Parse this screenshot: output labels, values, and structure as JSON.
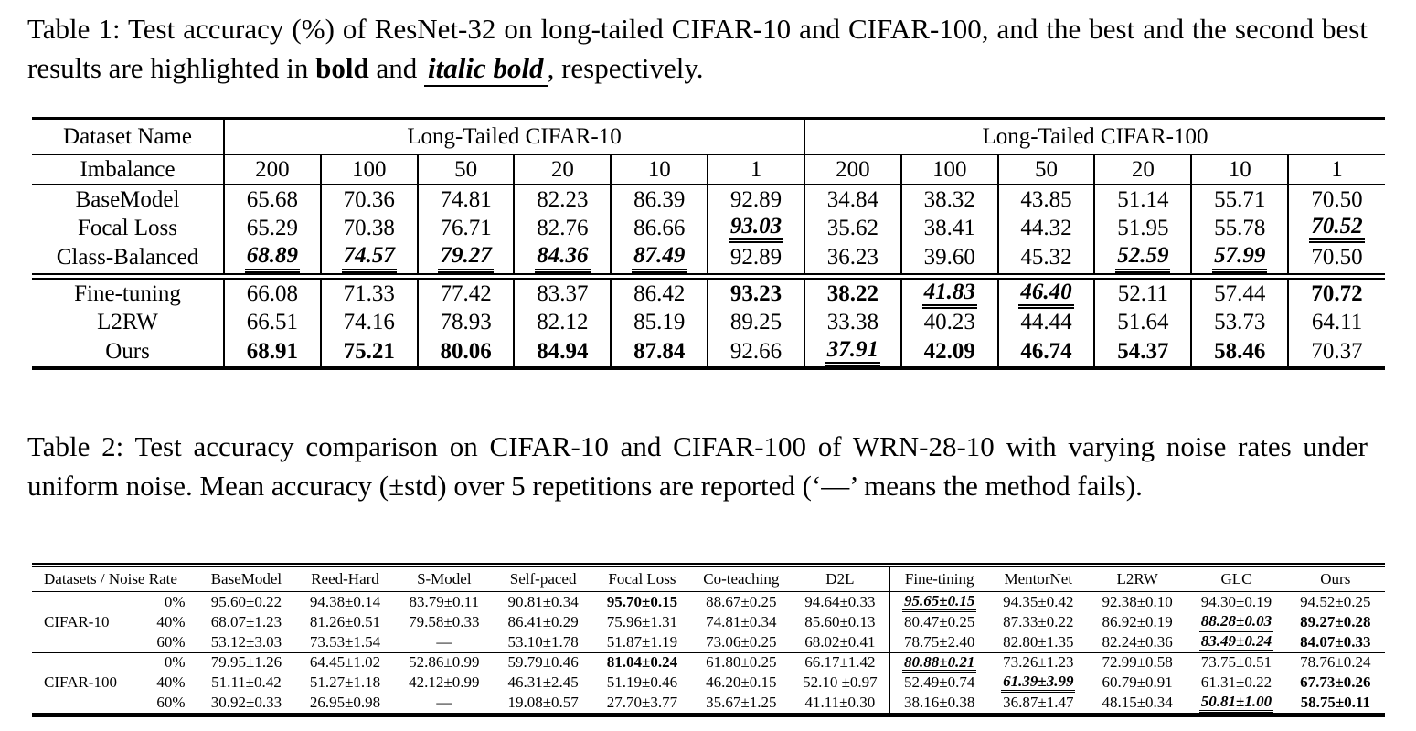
{
  "page": {
    "background": "#ffffff",
    "text_color": "#000000"
  },
  "style_legend": {
    "n": "normal",
    "b": "best (bold)",
    "u": "second best (italic bold, double underline)"
  },
  "table1": {
    "caption_segments": [
      {
        "text": "Table 1: Test accuracy (%) of ResNet-32 on long-tailed CIFAR-10 and CIFAR-100, and the best and the second best results are highlighted in ",
        "style": "normal"
      },
      {
        "text": "bold",
        "style": "bold"
      },
      {
        "text": " and ",
        "style": "normal"
      },
      {
        "text": "italic bold",
        "style": "bold-italic-underline"
      },
      {
        "text": ", respectively.",
        "style": "normal"
      }
    ],
    "header": {
      "dataset_name_label": "Dataset Name",
      "groups": [
        "Long-Tailed CIFAR-10",
        "Long-Tailed CIFAR-100"
      ],
      "imbalance_label": "Imbalance",
      "imbalance_values": [
        "200",
        "100",
        "50",
        "20",
        "10",
        "1",
        "200",
        "100",
        "50",
        "20",
        "10",
        "1"
      ]
    },
    "rows": [
      {
        "label": "BaseModel",
        "values": [
          "65.68",
          "70.36",
          "74.81",
          "82.23",
          "86.39",
          "92.89",
          "34.84",
          "38.32",
          "43.85",
          "51.14",
          "55.71",
          "70.50"
        ],
        "styles": "nnnnnnnnnnnn"
      },
      {
        "label": "Focal Loss",
        "values": [
          "65.29",
          "70.38",
          "76.71",
          "82.76",
          "86.66",
          "93.03",
          "35.62",
          "38.41",
          "44.32",
          "51.95",
          "55.78",
          "70.52"
        ],
        "styles": "nnnnnunnnnnu"
      },
      {
        "label": "Class-Balanced",
        "values": [
          "68.89",
          "74.57",
          "79.27",
          "84.36",
          "87.49",
          "92.89",
          "36.23",
          "39.60",
          "45.32",
          "52.59",
          "57.99",
          "70.50"
        ],
        "styles": "uuuuunnnnuun"
      },
      {
        "label": "Fine-tuning",
        "values": [
          "66.08",
          "71.33",
          "77.42",
          "83.37",
          "86.42",
          "93.23",
          "38.22",
          "41.83",
          "46.40",
          "52.11",
          "57.44",
          "70.72"
        ],
        "styles": "nnnnnbbuunnb"
      },
      {
        "label": "L2RW",
        "values": [
          "66.51",
          "74.16",
          "78.93",
          "82.12",
          "85.19",
          "89.25",
          "33.38",
          "40.23",
          "44.44",
          "51.64",
          "53.73",
          "64.11"
        ],
        "styles": "nnnnnnnnnnnn"
      },
      {
        "label": "Ours",
        "values": [
          "68.91",
          "75.21",
          "80.06",
          "84.94",
          "87.84",
          "92.66",
          "37.91",
          "42.09",
          "46.74",
          "54.37",
          "58.46",
          "70.37"
        ],
        "styles": "bbbbbnubbbbn"
      }
    ],
    "group_separator_after_row_index": 2
  },
  "table2": {
    "caption_text": "Table 2: Test accuracy comparison on CIFAR-10 and CIFAR-100 of WRN-28-10 with varying noise rates under uniform noise. Mean accuracy (±std) over 5 repetitions are reported (‘—’ means the method fails).",
    "column_headers": [
      "Datasets / Noise Rate",
      "BaseModel",
      "Reed-Hard",
      "S-Model",
      "Self-paced",
      "Focal Loss",
      "Co-teaching",
      "D2L",
      "Fine-tining",
      "MentorNet",
      "L2RW",
      "GLC",
      "Ours"
    ],
    "rows": [
      {
        "dataset": "",
        "rate": "0%",
        "values": [
          "95.60±0.22",
          "94.38±0.14",
          "83.79±0.11",
          "90.81±0.34",
          "95.70±0.15",
          "88.67±0.25",
          "94.64±0.33",
          "95.65±0.15",
          "94.35±0.42",
          "92.38±0.10",
          "94.30±0.19",
          "94.52±0.25"
        ],
        "styles": "nnnnbnnunnnn"
      },
      {
        "dataset": "CIFAR-10",
        "rate": "40%",
        "values": [
          "68.07±1.23",
          "81.26±0.51",
          "79.58±0.33",
          "86.41±0.29",
          "75.96±1.31",
          "74.81±0.34",
          "85.60±0.13",
          "80.47±0.25",
          "87.33±0.22",
          "86.92±0.19",
          "88.28±0.03",
          "89.27±0.28"
        ],
        "styles": "nnnnnnnnnnub"
      },
      {
        "dataset": "",
        "rate": "60%",
        "values": [
          "53.12±3.03",
          "73.53±1.54",
          "—",
          "53.10±1.78",
          "51.87±1.19",
          "73.06±0.25",
          "68.02±0.41",
          "78.75±2.40",
          "82.80±1.35",
          "82.24±0.36",
          "83.49±0.24",
          "84.07±0.33"
        ],
        "styles": "nnnnnnnnnnub"
      },
      {
        "dataset": "",
        "rate": "0%",
        "values": [
          "79.95±1.26",
          "64.45±1.02",
          "52.86±0.99",
          "59.79±0.46",
          "81.04±0.24",
          "61.80±0.25",
          "66.17±1.42",
          "80.88±0.21",
          "73.26±1.23",
          "72.99±0.58",
          "73.75±0.51",
          "78.76±0.24"
        ],
        "styles": "nnnnbnnunnnn"
      },
      {
        "dataset": "CIFAR-100",
        "rate": "40%",
        "values": [
          "51.11±0.42",
          "51.27±1.18",
          "42.12±0.99",
          "46.31±2.45",
          "51.19±0.46",
          "46.20±0.15",
          "52.10 ±0.97",
          "52.49±0.74",
          "61.39±3.99",
          "60.79±0.91",
          "61.31±0.22",
          "67.73±0.26"
        ],
        "styles": "nnnnnnnnunnb"
      },
      {
        "dataset": "",
        "rate": "60%",
        "values": [
          "30.92±0.33",
          "26.95±0.98",
          "—",
          "19.08±0.57",
          "27.70±3.77",
          "35.67±1.25",
          "41.11±0.30",
          "38.16±0.38",
          "36.87±1.47",
          "48.15±0.34",
          "50.81±1.00",
          "58.75±0.11"
        ],
        "styles": "nnnnnnnnnnub"
      }
    ],
    "block_separator_after_row_index": 2
  }
}
